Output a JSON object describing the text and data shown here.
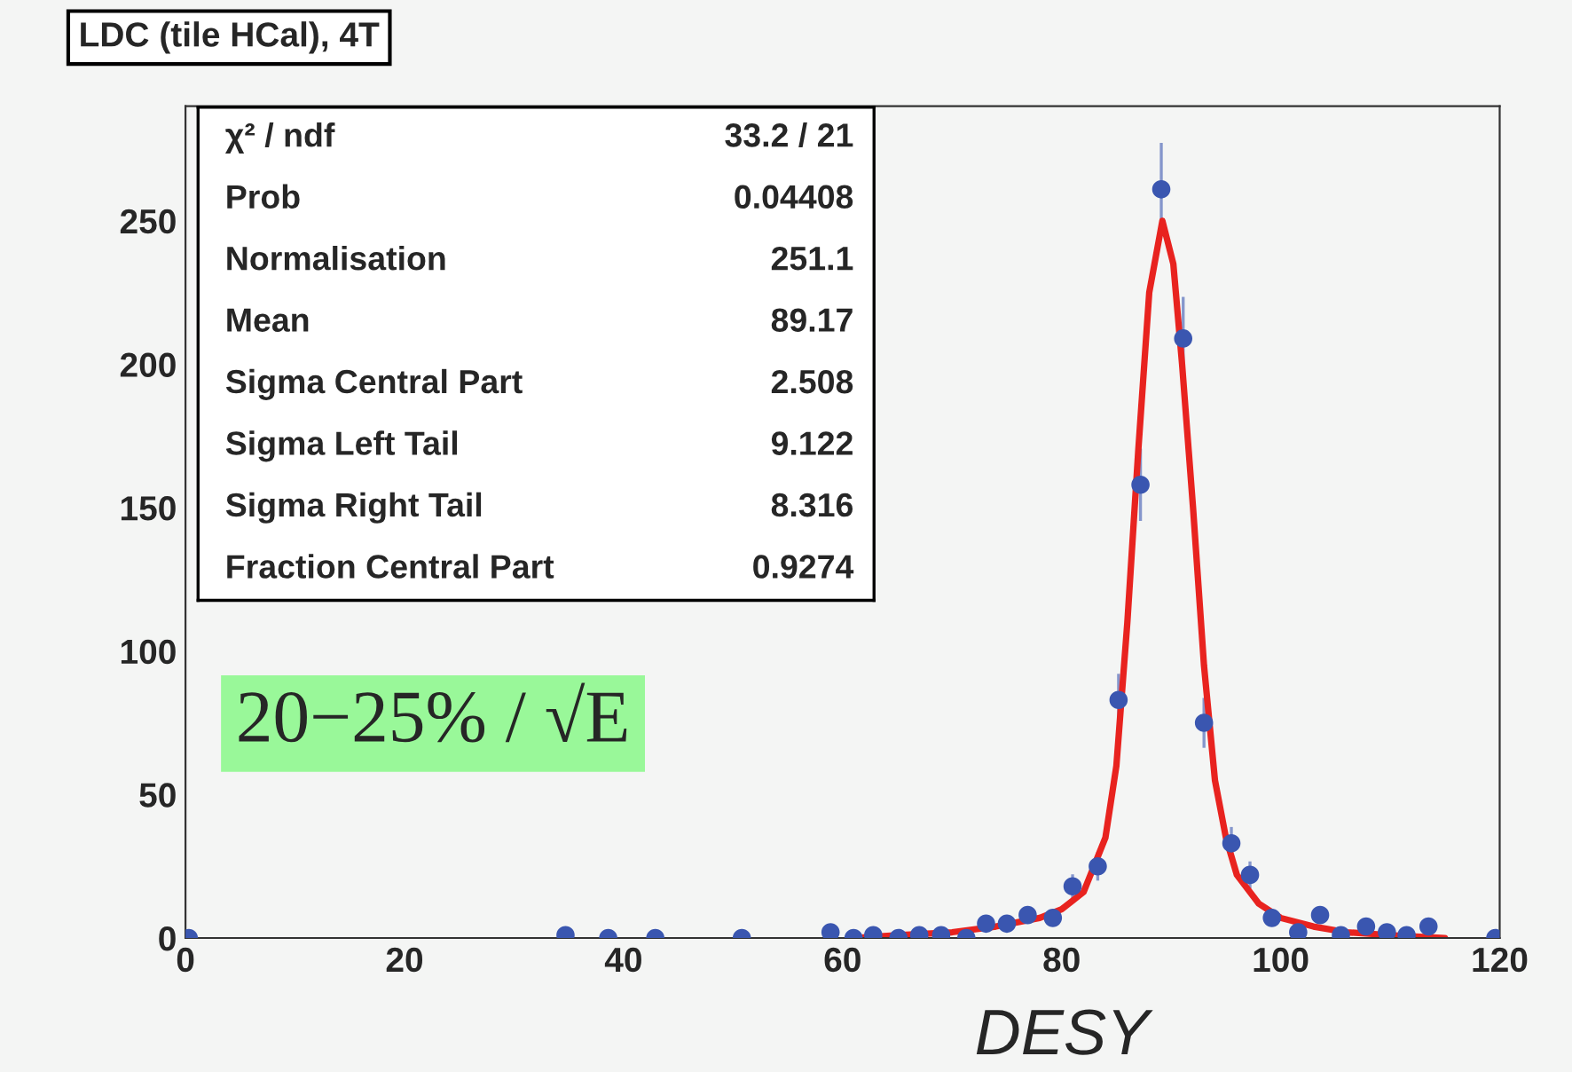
{
  "chart_data": {
    "type": "scatter",
    "title": "LDC (tile HCal), 4T",
    "xlim": [
      0,
      120
    ],
    "xticks": [
      0,
      20,
      40,
      60,
      80,
      100,
      120
    ],
    "ylim": [
      0,
      290
    ],
    "yticks": [
      0,
      50,
      100,
      150,
      200,
      250
    ],
    "grid": false,
    "legend": false,
    "marker": "circle",
    "series": [
      {
        "color": "#3a56b0",
        "x": [
          0.3,
          34.7,
          38.6,
          42.9,
          50.8,
          58.9,
          61.0,
          62.8,
          65.1,
          67.0,
          69.0,
          71.3,
          73.1,
          75.0,
          76.9,
          79.2,
          81.0,
          83.3,
          85.2,
          87.2,
          89.1,
          91.1,
          93.0,
          95.5,
          97.2,
          99.2,
          101.6,
          103.6,
          105.5,
          107.8,
          109.7,
          111.5,
          113.5,
          119.6
        ],
        "values": [
          0,
          1,
          0,
          0,
          0,
          2,
          0,
          1,
          0,
          1,
          1,
          0,
          5,
          5,
          8,
          7,
          18,
          25,
          83,
          158,
          261,
          209,
          75,
          33,
          22,
          7,
          2,
          8,
          1,
          4,
          2,
          1,
          4,
          0
        ],
        "errors": [
          null,
          1,
          null,
          null,
          null,
          1.4,
          null,
          1,
          null,
          1,
          1,
          null,
          2.2,
          2.2,
          2.8,
          2.6,
          4.2,
          5,
          9.1,
          12.6,
          16.2,
          14.5,
          8.7,
          5.7,
          4.7,
          2.6,
          1.4,
          2.8,
          1,
          2,
          1.4,
          1,
          2,
          null
        ]
      },
      {
        "type": "line",
        "color": "#e8231f",
        "line_style": "solid",
        "marker": "none",
        "x": [
          61,
          65,
          70,
          74,
          78,
          80,
          82,
          84,
          85,
          86,
          87,
          88,
          89.2,
          90.2,
          91,
          92,
          93,
          94,
          95,
          96,
          98,
          100,
          103,
          106,
          110,
          115
        ],
        "values": [
          0,
          1,
          2,
          4,
          7,
          10,
          16,
          35,
          60,
          110,
          170,
          225,
          250,
          235,
          200,
          150,
          95,
          55,
          35,
          22,
          12,
          7,
          4,
          2,
          1,
          0
        ]
      }
    ],
    "annotations": [
      "χ² / ndf",
      "33.2 / 21",
      "Prob",
      "0.04408",
      "Normalisation",
      "251.1",
      "Mean",
      "89.17",
      "Sigma Central Part",
      "2.508",
      "Sigma Left Tail",
      "9.122",
      "Sigma Right Tail",
      "8.316",
      "Fraction Central Part",
      "0.9274",
      "20−25% / √E",
      "DESY"
    ]
  }
}
